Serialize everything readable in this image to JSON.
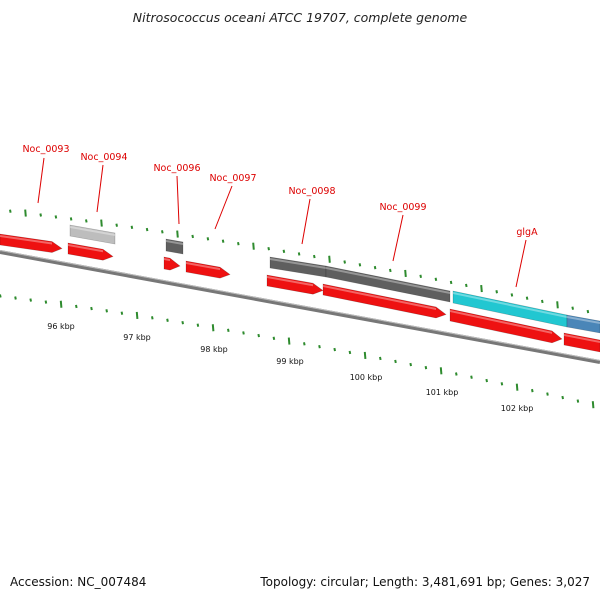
{
  "title": "Nitrosococcus oceani ATCC 19707, complete genome",
  "footer": {
    "accession": "Accession: NC_007484",
    "stats": "Topology: circular; Length: 3,481,691 bp; Genes: 3,027"
  },
  "colors": {
    "title": "#222222",
    "gene_label": "#dd0000",
    "tick": "#2e8b2e",
    "backbone": "#777777",
    "gene_red": "#ee1111",
    "gene_gray_light": "#bdbdbd",
    "gene_gray_dark": "#5f5f5f",
    "gene_cyan": "#22c7d1",
    "gene_blue": "#4a86b8"
  },
  "gene_labels": [
    {
      "name": "Noc_0093"
    },
    {
      "name": "Noc_0094"
    },
    {
      "name": "Noc_0096"
    },
    {
      "name": "Noc_0097"
    },
    {
      "name": "Noc_0098"
    },
    {
      "name": "Noc_0099"
    },
    {
      "name": "glgA"
    }
  ],
  "kbp_labels": [
    "96 kbp",
    "97 kbp",
    "98 kbp",
    "99 kbp",
    "100 kbp",
    "101 kbp",
    "102 kbp"
  ]
}
